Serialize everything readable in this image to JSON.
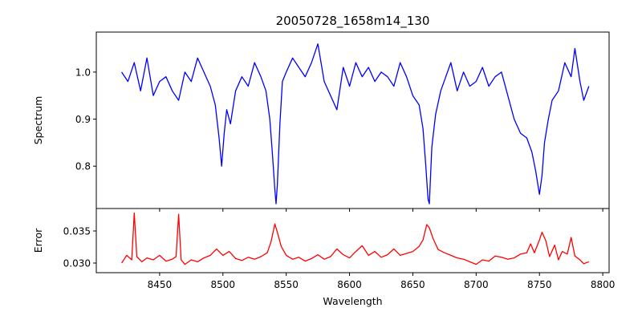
{
  "chart_data": {
    "type": "line",
    "title": "20050728_1658m14_130",
    "xlabel": "Wavelength",
    "xlim": [
      8400,
      8805
    ],
    "xticks": [
      8450,
      8500,
      8550,
      8600,
      8650,
      8700,
      8750,
      8800
    ],
    "panels": [
      {
        "ylabel": "Spectrum",
        "ylim": [
          0.71,
          1.085
        ],
        "yticks": [
          0.8,
          0.9,
          1.0
        ],
        "ytick_labels": [
          "0.8",
          "0.9",
          "1.0"
        ],
        "series": [
          {
            "color": "#0000ff",
            "x": [
              8420,
              8425,
              8430,
              8435,
              8440,
              8445,
              8450,
              8455,
              8460,
              8465,
              8470,
              8475,
              8480,
              8485,
              8490,
              8494,
              8497,
              8499,
              8501,
              8503,
              8506,
              8510,
              8515,
              8520,
              8525,
              8530,
              8534,
              8537,
              8539,
              8541,
              8542,
              8543,
              8545,
              8547,
              8550,
              8555,
              8560,
              8565,
              8570,
              8575,
              8580,
              8585,
              8590,
              8595,
              8600,
              8605,
              8610,
              8615,
              8620,
              8625,
              8630,
              8635,
              8640,
              8645,
              8650,
              8655,
              8658,
              8660,
              8662,
              8663,
              8665,
              8668,
              8672,
              8676,
              8680,
              8685,
              8690,
              8695,
              8700,
              8705,
              8710,
              8715,
              8720,
              8725,
              8730,
              8735,
              8740,
              8744,
              8747,
              8750,
              8752,
              8754,
              8757,
              8760,
              8765,
              8770,
              8775,
              8778,
              8782,
              8785,
              8789
            ],
            "y": [
              1.0,
              0.98,
              1.02,
              0.96,
              1.03,
              0.95,
              0.98,
              0.99,
              0.96,
              0.94,
              1.0,
              0.98,
              1.03,
              1.0,
              0.97,
              0.93,
              0.86,
              0.8,
              0.87,
              0.92,
              0.89,
              0.96,
              0.99,
              0.97,
              1.02,
              0.99,
              0.96,
              0.9,
              0.83,
              0.75,
              0.72,
              0.76,
              0.89,
              0.98,
              1.0,
              1.03,
              1.01,
              0.99,
              1.02,
              1.06,
              0.98,
              0.95,
              0.92,
              1.01,
              0.97,
              1.02,
              0.99,
              1.01,
              0.98,
              1.0,
              0.99,
              0.97,
              1.02,
              0.99,
              0.95,
              0.93,
              0.88,
              0.81,
              0.73,
              0.72,
              0.84,
              0.91,
              0.96,
              0.99,
              1.02,
              0.96,
              1.0,
              0.97,
              0.98,
              1.01,
              0.97,
              0.99,
              1.0,
              0.95,
              0.9,
              0.87,
              0.86,
              0.83,
              0.79,
              0.74,
              0.78,
              0.85,
              0.9,
              0.94,
              0.96,
              1.02,
              0.99,
              1.05,
              0.98,
              0.94,
              0.97
            ]
          }
        ]
      },
      {
        "ylabel": "Error",
        "ylim": [
          0.0285,
          0.0385
        ],
        "yticks": [
          0.03,
          0.035
        ],
        "ytick_labels": [
          "0.030",
          "0.035"
        ],
        "series": [
          {
            "color": "#ff0000",
            "x": [
              8420,
              8424,
              8428,
              8430,
              8432,
              8436,
              8440,
              8445,
              8450,
              8455,
              8460,
              8463,
              8465,
              8467,
              8470,
              8475,
              8480,
              8485,
              8490,
              8495,
              8500,
              8505,
              8510,
              8515,
              8520,
              8525,
              8530,
              8535,
              8538,
              8541,
              8543,
              8546,
              8550,
              8555,
              8560,
              8565,
              8570,
              8575,
              8580,
              8585,
              8590,
              8595,
              8600,
              8605,
              8610,
              8615,
              8620,
              8625,
              8630,
              8635,
              8640,
              8645,
              8650,
              8655,
              8658,
              8661,
              8663,
              8666,
              8670,
              8675,
              8680,
              8685,
              8690,
              8695,
              8700,
              8705,
              8710,
              8715,
              8720,
              8725,
              8730,
              8735,
              8740,
              8743,
              8746,
              8750,
              8752,
              8755,
              8758,
              8762,
              8765,
              8768,
              8772,
              8775,
              8778,
              8782,
              8785,
              8789
            ],
            "y": [
              0.03,
              0.0312,
              0.0305,
              0.0378,
              0.031,
              0.0302,
              0.0308,
              0.0305,
              0.0312,
              0.0303,
              0.0306,
              0.031,
              0.0376,
              0.0305,
              0.0298,
              0.0305,
              0.0302,
              0.0308,
              0.0312,
              0.0322,
              0.0312,
              0.0318,
              0.0307,
              0.0304,
              0.0309,
              0.0306,
              0.031,
              0.0316,
              0.0333,
              0.0361,
              0.0348,
              0.0326,
              0.0312,
              0.0306,
              0.0309,
              0.0303,
              0.0307,
              0.0313,
              0.0306,
              0.031,
              0.0322,
              0.0313,
              0.0308,
              0.0318,
              0.0327,
              0.0312,
              0.0318,
              0.0309,
              0.0313,
              0.0322,
              0.0312,
              0.0315,
              0.0318,
              0.0326,
              0.0336,
              0.036,
              0.0355,
              0.0338,
              0.0321,
              0.0316,
              0.0312,
              0.0308,
              0.0306,
              0.0302,
              0.0298,
              0.0305,
              0.0303,
              0.0311,
              0.0309,
              0.0306,
              0.0308,
              0.0314,
              0.0316,
              0.033,
              0.0316,
              0.0336,
              0.0348,
              0.0335,
              0.031,
              0.0328,
              0.0305,
              0.0318,
              0.0314,
              0.034,
              0.0311,
              0.0305,
              0.0299,
              0.0302
            ]
          }
        ]
      }
    ]
  }
}
